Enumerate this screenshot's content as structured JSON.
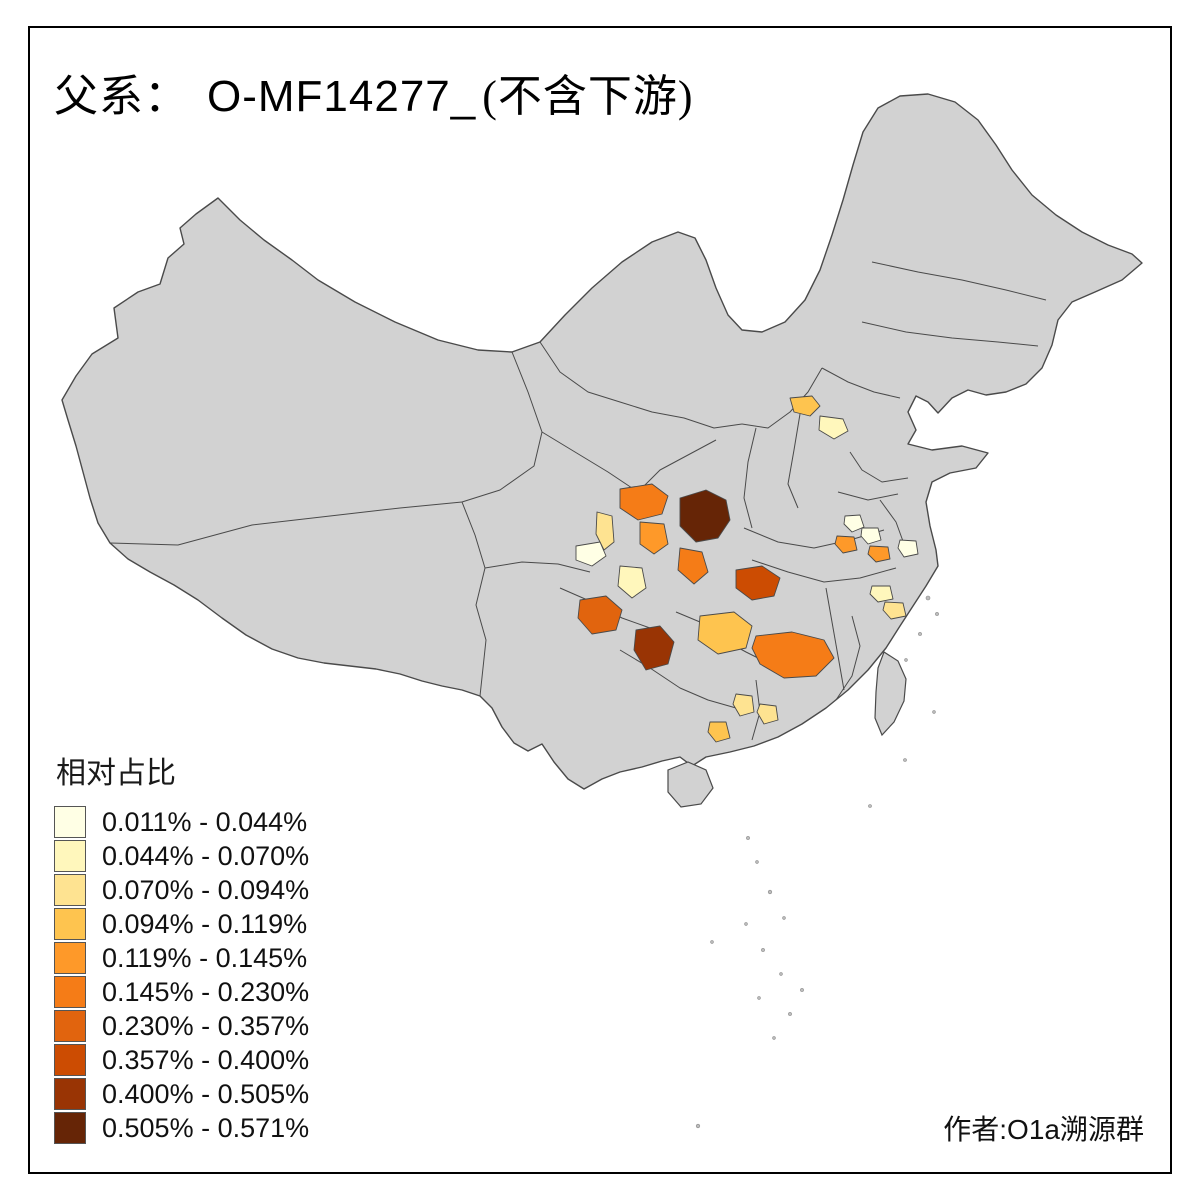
{
  "title": {
    "prefix": "父系：",
    "id": "O-MF14277_",
    "suffix": "(不含下游)"
  },
  "legend": {
    "title": "相对占比",
    "entries": [
      {
        "label": "0.011% - 0.044%",
        "color": "#FFFFE5"
      },
      {
        "label": "0.044% - 0.070%",
        "color": "#FFF7BC"
      },
      {
        "label": "0.070% - 0.094%",
        "color": "#FEE391"
      },
      {
        "label": "0.094% - 0.119%",
        "color": "#FEC44F"
      },
      {
        "label": "0.119% - 0.145%",
        "color": "#FE9929"
      },
      {
        "label": "0.145% - 0.230%",
        "color": "#F57C17"
      },
      {
        "label": "0.230% - 0.357%",
        "color": "#E1640E"
      },
      {
        "label": "0.357% - 0.400%",
        "color": "#CC4C02"
      },
      {
        "label": "0.400% - 0.505%",
        "color": "#993404"
      },
      {
        "label": "0.505% - 0.571%",
        "color": "#662506"
      }
    ]
  },
  "credit": "作者:O1a溯源群",
  "map": {
    "base_fill": "#D2D2D2",
    "island_fill": "#C9C9C9",
    "border_color": "#4A4A4A",
    "background": "#FFFFFF",
    "regions": {
      "r01": 3,
      "r02": 1,
      "r03": 9,
      "r04": 5,
      "r05": 4,
      "r06": 2,
      "r07": 0,
      "r08": 1,
      "r09": 5,
      "r10": 7,
      "r11": 6,
      "r12": 8,
      "r13": 3,
      "r14": 5,
      "r15": 2,
      "r16": 2,
      "r17": 3,
      "r18": 0,
      "r19": 0,
      "r20": 4,
      "r21": 4,
      "r22": 0,
      "r23": 1,
      "r24": 2
    }
  }
}
